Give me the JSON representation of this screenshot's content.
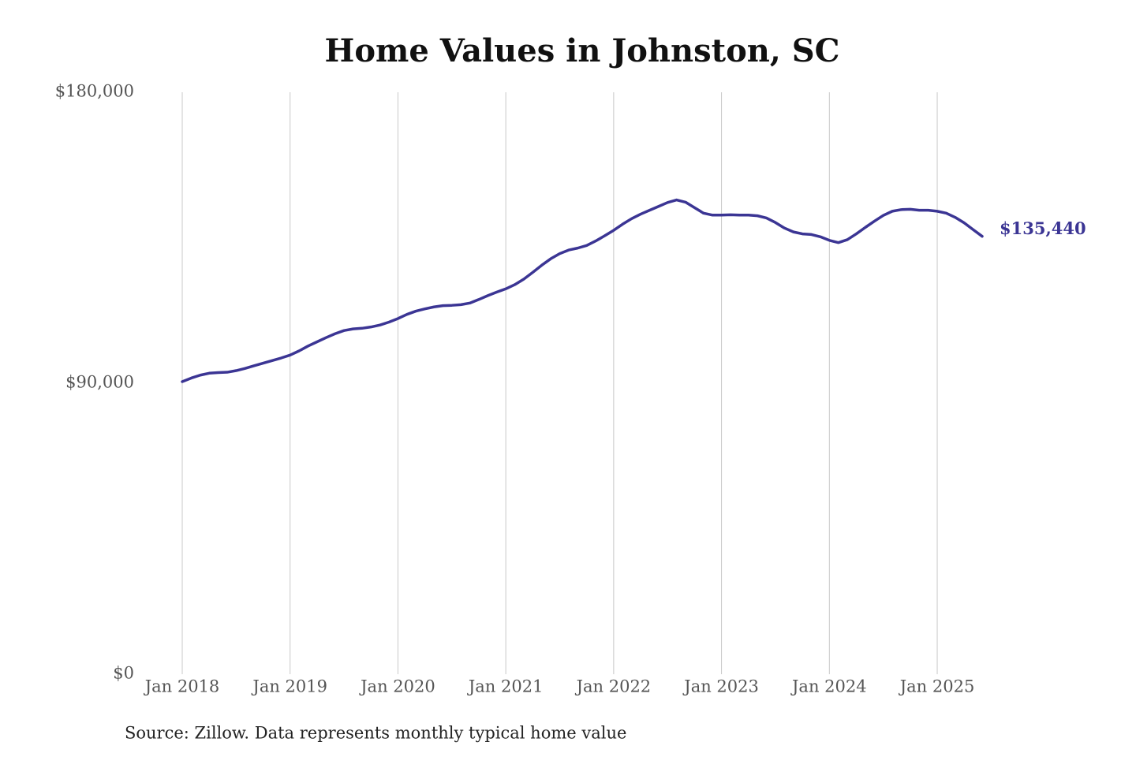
{
  "chart_data": {
    "type": "line",
    "title": "Home Values in Johnston, SC",
    "caption": "Source: Zillow. Data represents monthly typical home value",
    "x": [
      "2018-01",
      "2018-02",
      "2018-03",
      "2018-04",
      "2018-05",
      "2018-06",
      "2018-07",
      "2018-08",
      "2018-09",
      "2018-10",
      "2018-11",
      "2018-12",
      "2019-01",
      "2019-02",
      "2019-03",
      "2019-04",
      "2019-05",
      "2019-06",
      "2019-07",
      "2019-08",
      "2019-09",
      "2019-10",
      "2019-11",
      "2019-12",
      "2020-01",
      "2020-02",
      "2020-03",
      "2020-04",
      "2020-05",
      "2020-06",
      "2020-07",
      "2020-08",
      "2020-09",
      "2020-10",
      "2020-11",
      "2020-12",
      "2021-01",
      "2021-02",
      "2021-03",
      "2021-04",
      "2021-05",
      "2021-06",
      "2021-07",
      "2021-08",
      "2021-09",
      "2021-10",
      "2021-11",
      "2021-12",
      "2022-01",
      "2022-02",
      "2022-03",
      "2022-04",
      "2022-05",
      "2022-06",
      "2022-07",
      "2022-08",
      "2022-09",
      "2022-10",
      "2022-11",
      "2022-12",
      "2023-01",
      "2023-02",
      "2023-03",
      "2023-04",
      "2023-05",
      "2023-06",
      "2023-07",
      "2023-08",
      "2023-09",
      "2023-10",
      "2023-11",
      "2023-12",
      "2024-01",
      "2024-02",
      "2024-03",
      "2024-04",
      "2024-05",
      "2024-06",
      "2024-07",
      "2024-08",
      "2024-09",
      "2024-10",
      "2024-11",
      "2024-12",
      "2025-01",
      "2025-02",
      "2025-03",
      "2025-04",
      "2025-05",
      "2025-06"
    ],
    "values": [
      90500,
      91600,
      92500,
      93100,
      93300,
      93400,
      93900,
      94600,
      95400,
      96200,
      97000,
      97800,
      98700,
      100000,
      101500,
      102800,
      104100,
      105300,
      106300,
      106800,
      107000,
      107400,
      108000,
      108900,
      110000,
      111300,
      112300,
      113000,
      113600,
      114000,
      114100,
      114300,
      114800,
      115900,
      117100,
      118200,
      119200,
      120500,
      122200,
      124300,
      126500,
      128500,
      130100,
      131200,
      131800,
      132600,
      134000,
      135600,
      137300,
      139200,
      140900,
      142300,
      143500,
      144700,
      145900,
      146700,
      146000,
      144300,
      142600,
      142000,
      142000,
      142100,
      142000,
      142000,
      141800,
      141100,
      139700,
      138000,
      136800,
      136200,
      136000,
      135300,
      134200,
      133500,
      134400,
      136200,
      138200,
      140100,
      141900,
      143200,
      143700,
      143800,
      143500,
      143500,
      143200,
      142600,
      141300,
      139600,
      137500,
      135440
    ],
    "value_labels": [
      null,
      null,
      null,
      null,
      null,
      null,
      null,
      null,
      null,
      null,
      null,
      null,
      null,
      null,
      null,
      null,
      null,
      null,
      null,
      null,
      null,
      null,
      null,
      null,
      null,
      null,
      null,
      null,
      null,
      null,
      null,
      null,
      null,
      null,
      null,
      null,
      null,
      null,
      null,
      null,
      null,
      null,
      null,
      null,
      null,
      null,
      null,
      null,
      null,
      null,
      null,
      null,
      null,
      null,
      null,
      null,
      null,
      null,
      null,
      null,
      null,
      null,
      null,
      null,
      null,
      null,
      null,
      null,
      null,
      null,
      null,
      null,
      null,
      null,
      null,
      null,
      null,
      null,
      null,
      null,
      null,
      null,
      null,
      null,
      null,
      null,
      null,
      null,
      null,
      "$135,440"
    ],
    "color": "#3b3594",
    "xlim": [
      "2018-01",
      "2025-06"
    ],
    "xticks": [
      {
        "value": "2018-01",
        "label": "Jan 2018"
      },
      {
        "value": "2019-01",
        "label": "Jan 2019"
      },
      {
        "value": "2020-01",
        "label": "Jan 2020"
      },
      {
        "value": "2021-01",
        "label": "Jan 2021"
      },
      {
        "value": "2022-01",
        "label": "Jan 2022"
      },
      {
        "value": "2023-01",
        "label": "Jan 2023"
      },
      {
        "value": "2024-01",
        "label": "Jan 2024"
      },
      {
        "value": "2025-01",
        "label": "Jan 2025"
      }
    ],
    "ylim": [
      0,
      180000
    ],
    "yticks": [
      {
        "value": 0,
        "label": "$0"
      },
      {
        "value": 90000,
        "label": "$90,000"
      },
      {
        "value": 180000,
        "label": "$180,000"
      }
    ],
    "grid": true
  }
}
